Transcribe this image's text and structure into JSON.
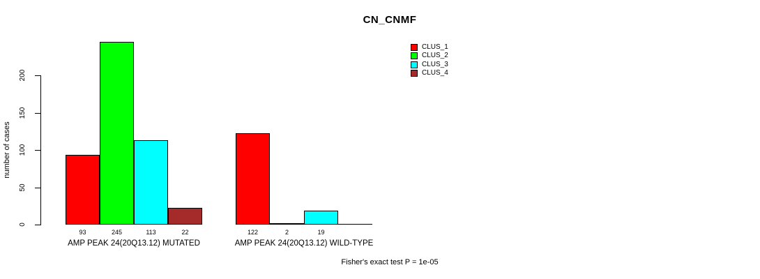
{
  "chart_data": {
    "type": "bar",
    "title": "CN_CNMF",
    "xlabel": "",
    "ylabel": "number of cases",
    "ylim": [
      0,
      245
    ],
    "yticks": [
      0,
      50,
      100,
      150,
      200
    ],
    "grid": false,
    "legend_position": "top-right",
    "categories": [
      "AMP PEAK 24(20Q13.12) MUTATED",
      "AMP PEAK 24(20Q13.12) WILD-TYPE"
    ],
    "series": [
      {
        "name": "CLUS_1",
        "color": "#ff0000",
        "values": [
          93,
          122
        ]
      },
      {
        "name": "CLUS_2",
        "color": "#00ff00",
        "values": [
          245,
          2
        ]
      },
      {
        "name": "CLUS_3",
        "color": "#00ffff",
        "values": [
          113,
          19
        ]
      },
      {
        "name": "CLUS_4",
        "color": "#a52a2a",
        "values": [
          22,
          0
        ]
      }
    ],
    "bar_value_labels": [
      [
        "93",
        "245",
        "113",
        "22"
      ],
      [
        "122",
        "2",
        "19",
        ""
      ]
    ],
    "annotation": "Fisher's exact test P = 1e-05"
  }
}
